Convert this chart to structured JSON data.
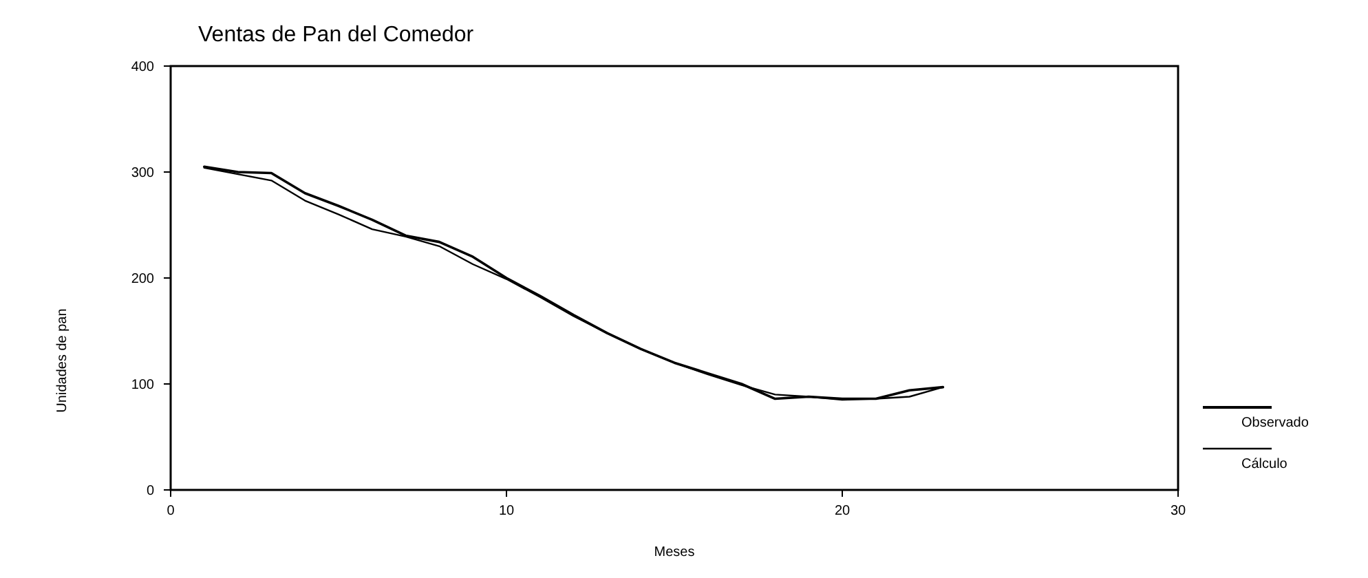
{
  "chart_data": {
    "type": "line",
    "title": "Ventas de Pan del Comedor",
    "xlabel": "Meses",
    "ylabel": "Unidades de pan",
    "x": [
      1,
      2,
      3,
      4,
      5,
      6,
      7,
      8,
      9,
      10,
      11,
      12,
      13,
      14,
      15,
      16,
      17,
      18,
      19,
      20,
      21,
      22,
      23
    ],
    "series": [
      {
        "name": "Observado",
        "color": "#000000",
        "values": [
          305,
          300,
          299,
          280,
          268,
          255,
          240,
          234,
          220,
          200,
          183,
          165,
          148,
          133,
          120,
          110,
          100,
          86,
          88,
          86,
          86,
          94,
          97
        ]
      },
      {
        "name": "Cálculo",
        "color": "#000000",
        "values": [
          304,
          298,
          292,
          273,
          260,
          246,
          239,
          230,
          213,
          199,
          182,
          164,
          148,
          133,
          120,
          109,
          99,
          90,
          88,
          85,
          86,
          88,
          97
        ]
      }
    ],
    "xlim": [
      0,
      30
    ],
    "xticks": [
      0,
      10,
      20,
      30
    ],
    "ylim": [
      0,
      400
    ],
    "yticks": [
      0,
      100,
      200,
      300,
      400
    ],
    "grid": false,
    "legend": "right",
    "marker": "none",
    "line_style": "solid"
  }
}
